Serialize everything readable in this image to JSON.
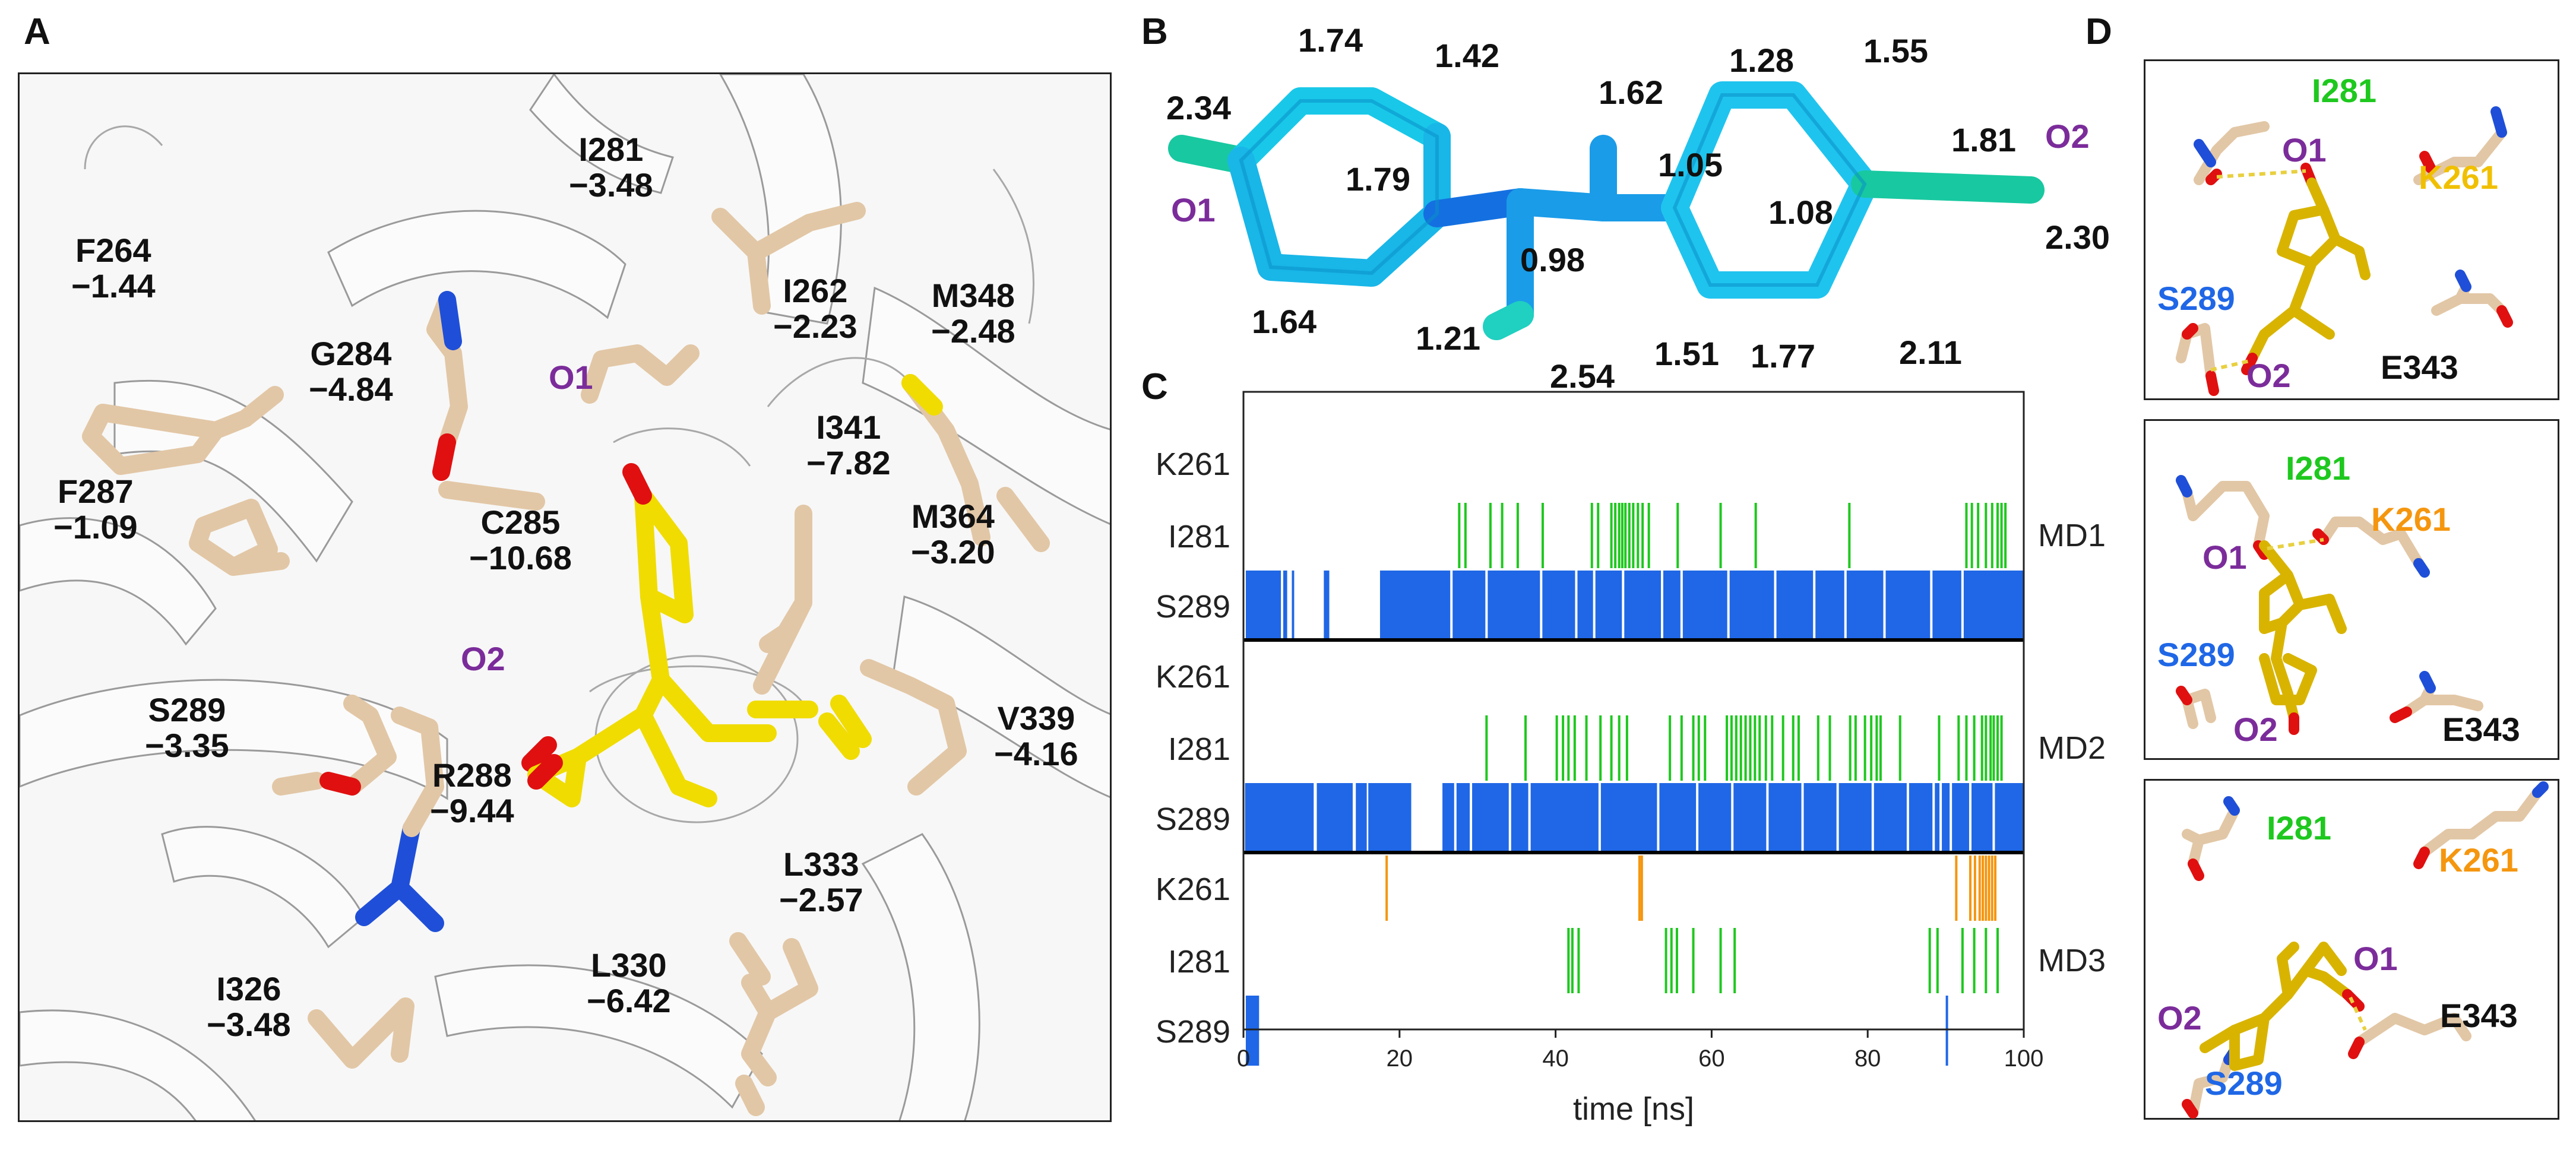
{
  "panels": {
    "a": "A",
    "b": "B",
    "c": "C",
    "d": "D"
  },
  "panelA": {
    "residues": [
      {
        "name": "I281",
        "value": "−3.48"
      },
      {
        "name": "F264",
        "value": "−1.44"
      },
      {
        "name": "G284",
        "value": "−4.84"
      },
      {
        "name": "I262",
        "value": "−2.23"
      },
      {
        "name": "M348",
        "value": "−2.48"
      },
      {
        "name": "F287",
        "value": "−1.09"
      },
      {
        "name": "C285",
        "value": "−10.68"
      },
      {
        "name": "I341",
        "value": "−7.82"
      },
      {
        "name": "M364",
        "value": "−3.20"
      },
      {
        "name": "S289",
        "value": "−3.35"
      },
      {
        "name": "R288",
        "value": "−9.44"
      },
      {
        "name": "V339",
        "value": "−4.16"
      },
      {
        "name": "L333",
        "value": "−2.57"
      },
      {
        "name": "L330",
        "value": "−6.42"
      },
      {
        "name": "I326",
        "value": "−3.48"
      }
    ],
    "o1": "O1",
    "o2": "O2"
  },
  "panelB": {
    "values": [
      "2.34",
      "1.74",
      "1.42",
      "1.62",
      "1.28",
      "1.55",
      "1.79",
      "1.05",
      "1.81",
      "1.08",
      "0.98",
      "2.30",
      "1.64",
      "1.21",
      "2.54",
      "1.51",
      "1.77",
      "2.11"
    ],
    "o1": "O1",
    "o2": "O2"
  },
  "panelD": {
    "boxes": [
      {
        "labels": {
          "I281": "I281",
          "K261": "K261",
          "O1": "O1",
          "S289": "S289",
          "O2": "O2",
          "E343": "E343"
        }
      },
      {
        "labels": {
          "I281": "I281",
          "K261": "K261",
          "O1": "O1",
          "S289": "S289",
          "O2": "O2",
          "E343": "E343"
        }
      },
      {
        "labels": {
          "I281": "I281",
          "K261": "K261",
          "O1": "O1",
          "S289": "S289",
          "O2": "O2",
          "E343": "E343"
        }
      }
    ]
  },
  "colors": {
    "S289": "#1f67e6",
    "I281": "#1ec81e",
    "K261": "#f5960f",
    "ligand": "#f0d20a",
    "ring": "#19d0f0",
    "purple": "#7b2c9a"
  },
  "chart_data": {
    "type": "event-raster",
    "xlabel": "time [ns]",
    "xlim": [
      0,
      100
    ],
    "xticks": [
      0,
      20,
      40,
      60,
      80,
      100
    ],
    "rows": [
      "K261",
      "I281",
      "S289"
    ],
    "blocks": [
      {
        "name": "MD1",
        "events": {
          "K261": [],
          "I281": [
            27.5,
            28.3,
            31.5,
            33.0,
            35.0,
            38.2,
            44.5,
            45.3,
            47.0,
            47.5,
            48.0,
            48.4,
            48.8,
            49.3,
            49.8,
            50.4,
            51.0,
            51.8,
            55.5,
            61.0,
            65.5,
            77.5,
            92.5,
            93.2,
            94.0,
            95.0,
            95.8,
            96.5,
            97.0,
            97.5
          ],
          "S289_spans": [
            [
              0.3,
              4.8
            ],
            [
              5.1,
              5.6
            ],
            [
              6.2,
              6.5
            ],
            [
              10.3,
              11.0
            ],
            [
              17.5,
              100
            ]
          ],
          "S289_gaps": [
            26.5,
            31.0,
            38.0,
            42.5,
            44.8,
            48.5,
            53.5,
            56.0,
            62.0,
            68.0,
            73.0,
            77.0,
            82.0,
            88.0,
            92.0
          ]
        }
      },
      {
        "name": "MD2",
        "events": {
          "K261": [],
          "I281": [
            31.0,
            36.0,
            40.0,
            40.8,
            41.5,
            42.3,
            43.8,
            45.6,
            47.0,
            48.0,
            49.0,
            54.5,
            56.0,
            57.5,
            58.2,
            59.0,
            61.8,
            62.4,
            63.0,
            63.6,
            64.2,
            64.8,
            65.4,
            66.0,
            66.8,
            67.6,
            69.0,
            70.3,
            71.0,
            73.5,
            75.0,
            77.6,
            78.3,
            79.5,
            80.3,
            81.0,
            81.5,
            84.0,
            89.0,
            91.5,
            92.5,
            93.5,
            94.5,
            95.0,
            95.6,
            96.0,
            96.5,
            97.0
          ],
          "S289_spans": [
            [
              0.2,
              9.0
            ],
            [
              9.4,
              14.0
            ],
            [
              14.4,
              15.8
            ],
            [
              16.0,
              21.5
            ],
            [
              25.5,
              100
            ]
          ],
          "S289_gaps": [
            27.0,
            29.0,
            34.0,
            36.5,
            45.5,
            53.0,
            58.0,
            62.5,
            67.0,
            71.5,
            76.0,
            80.5,
            85.0,
            88.3,
            89.2,
            90.5,
            93.0,
            96.0
          ]
        }
      },
      {
        "name": "MD3",
        "events": {
          "K261": [
            18.2,
            50.6,
            50.9,
            91.2,
            93.0,
            93.6,
            94.2,
            94.6,
            95.0,
            95.4,
            95.8,
            96.2
          ],
          "I281": [
            41.5,
            42.0,
            42.8,
            54.0,
            54.7,
            55.4,
            57.5,
            61.0,
            62.8,
            87.8,
            88.8,
            92.0,
            93.5,
            95.0,
            96.5
          ],
          "S289_spans": [
            [
              0.3,
              2.0
            ]
          ],
          "S289_gaps": [],
          "S289_ticks": [
            90.0
          ]
        }
      }
    ]
  }
}
